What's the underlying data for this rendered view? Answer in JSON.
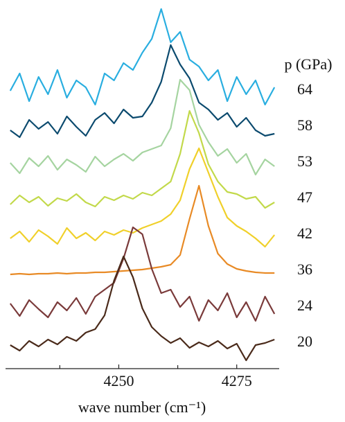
{
  "chart_data": {
    "type": "line",
    "xlabel": "wave number (cm⁻¹)",
    "legend_title": "p (GPa)",
    "xlim": [
      4226,
      4284
    ],
    "xticks": [
      4250,
      4275
    ],
    "minor_xticks": [
      4237.5,
      4262.5
    ],
    "x": [
      4227,
      4229,
      4231,
      4233,
      4235,
      4237,
      4239,
      4241,
      4243,
      4245,
      4247,
      4249,
      4251,
      4253,
      4255,
      4257,
      4259,
      4261,
      4263,
      4265,
      4267,
      4269,
      4271,
      4273,
      4275,
      4277,
      4279,
      4281,
      4283
    ],
    "series": [
      {
        "name": "64",
        "color": "#29aee0",
        "values": [
          5,
          30,
          -10,
          25,
          0,
          35,
          -5,
          20,
          10,
          -15,
          30,
          20,
          45,
          35,
          60,
          80,
          123,
          75,
          90,
          50,
          40,
          20,
          35,
          -10,
          25,
          0,
          20,
          -15,
          10
        ]
      },
      {
        "name": "58",
        "color": "#0b4a6e",
        "values": [
          0,
          -10,
          15,
          2,
          12,
          -5,
          20,
          5,
          -8,
          15,
          25,
          10,
          30,
          18,
          20,
          40,
          70,
          123,
          95,
          75,
          40,
          30,
          15,
          25,
          5,
          18,
          0,
          -8,
          -5
        ]
      },
      {
        "name": "53",
        "color": "#a5d4a0",
        "values": [
          5,
          -10,
          12,
          0,
          15,
          -5,
          10,
          2,
          -8,
          14,
          0,
          10,
          18,
          8,
          20,
          25,
          30,
          55,
          125,
          110,
          60,
          35,
          15,
          25,
          5,
          18,
          -12,
          10,
          0
        ]
      },
      {
        "name": "47",
        "color": "#c2d94a",
        "values": [
          -3,
          10,
          0,
          8,
          -5,
          6,
          2,
          12,
          0,
          -6,
          8,
          3,
          10,
          5,
          14,
          10,
          20,
          30,
          70,
          132,
          100,
          55,
          30,
          15,
          12,
          5,
          8,
          -8,
          0
        ]
      },
      {
        "name": "42",
        "color": "#f0d02a",
        "values": [
          0,
          10,
          -5,
          12,
          3,
          -8,
          15,
          0,
          8,
          -3,
          10,
          5,
          12,
          8,
          15,
          20,
          25,
          35,
          55,
          100,
          130,
          95,
          60,
          30,
          18,
          10,
          0,
          -12,
          5
        ]
      },
      {
        "name": "36",
        "color": "#e88a25",
        "values": [
          0,
          1,
          0,
          1,
          1,
          2,
          1,
          2,
          2,
          3,
          3,
          4,
          5,
          6,
          7,
          9,
          11,
          14,
          28,
          80,
          128,
          70,
          30,
          15,
          8,
          5,
          3,
          2,
          2
        ]
      },
      {
        "name": "24",
        "color": "#7a3a3a",
        "values": [
          10,
          -8,
          15,
          2,
          -10,
          12,
          0,
          18,
          -5,
          20,
          30,
          40,
          75,
          120,
          110,
          60,
          25,
          30,
          5,
          20,
          -15,
          15,
          0,
          25,
          -10,
          12,
          -15,
          20,
          -5
        ]
      },
      {
        "name": "20",
        "color": "#4a2a1a",
        "values": [
          2,
          -6,
          8,
          0,
          10,
          3,
          14,
          8,
          20,
          25,
          45,
          95,
          130,
          100,
          55,
          28,
          15,
          5,
          12,
          -2,
          6,
          0,
          8,
          -3,
          4,
          -20,
          2,
          5,
          10
        ]
      }
    ]
  }
}
